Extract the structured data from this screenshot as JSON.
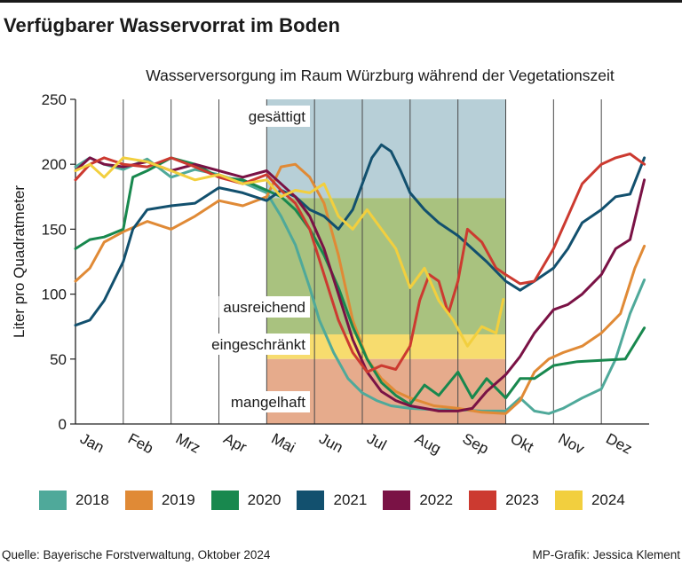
{
  "title": "Verfügbarer Wasservorrat im Boden",
  "footer": {
    "source": "Quelle: Bayerische Forstverwaltung, Oktober 2024",
    "credit": "MP-Grafik: Jessica Klement"
  },
  "chart_data": {
    "type": "line",
    "title": "Verfügbarer Wasservorrat im Boden",
    "subtitle": "Wasserversorgung im Raum Würzburg während der Vegetationszeit",
    "ylabel": "Liter pro Quadratmeter",
    "ylim": [
      0,
      250
    ],
    "yticks": [
      0,
      50,
      100,
      150,
      200,
      250
    ],
    "xlim": [
      0,
      12
    ],
    "months": [
      "Jan",
      "Feb",
      "Mrz",
      "Apr",
      "Mai",
      "Jun",
      "Jul",
      "Aug",
      "Sep",
      "Okt",
      "Nov",
      "Dez"
    ],
    "grid": "vertical at month starts",
    "legend_position": "bottom",
    "zones": [
      {
        "label": "gesättigt",
        "from": 174,
        "to": 250,
        "color": "#b7cfd7"
      },
      {
        "label": "ausreichend",
        "from": 69,
        "to": 174,
        "color": "#a9c27f"
      },
      {
        "label": "eingeschränkt",
        "from": 50,
        "to": 69,
        "color": "#f7dc6e"
      },
      {
        "label": "mangelhaft",
        "from": 0,
        "to": 50,
        "color": "#e6ab8c"
      }
    ],
    "zone_x_range": [
      4,
      9
    ],
    "series": [
      {
        "name": "2018",
        "color": "#4fa99a",
        "x": [
          0,
          0.3,
          0.6,
          1.0,
          1.5,
          2.0,
          2.5,
          3.0,
          3.5,
          4.0,
          4.3,
          4.6,
          4.9,
          5.1,
          5.4,
          5.7,
          6.0,
          6.3,
          6.6,
          7.0,
          7.5,
          8.0,
          8.5,
          9.0,
          9.3,
          9.6,
          9.9,
          10.2,
          10.6,
          11.0,
          11.3,
          11.6,
          11.9
        ],
        "y": [
          198,
          205,
          200,
          196,
          204,
          190,
          196,
          192,
          186,
          178,
          160,
          138,
          105,
          80,
          55,
          35,
          24,
          18,
          14,
          12,
          11,
          11,
          10,
          10,
          20,
          10,
          8,
          12,
          20,
          27,
          50,
          85,
          111
        ]
      },
      {
        "name": "2019",
        "color": "#e08a36",
        "x": [
          0,
          0.3,
          0.6,
          1.0,
          1.5,
          2.0,
          2.5,
          3.0,
          3.5,
          4.0,
          4.3,
          4.6,
          4.9,
          5.2,
          5.5,
          5.8,
          6.1,
          6.4,
          6.7,
          7.0,
          7.5,
          8.0,
          8.5,
          9.0,
          9.3,
          9.6,
          9.9,
          10.2,
          10.6,
          11.0,
          11.4,
          11.7,
          11.9
        ],
        "y": [
          110,
          120,
          140,
          148,
          156,
          150,
          160,
          172,
          168,
          175,
          198,
          200,
          190,
          170,
          130,
          80,
          50,
          35,
          25,
          20,
          14,
          12,
          9,
          8,
          18,
          40,
          50,
          55,
          60,
          70,
          85,
          120,
          137
        ]
      },
      {
        "name": "2020",
        "color": "#18884e",
        "x": [
          0,
          0.3,
          0.6,
          1.0,
          1.2,
          1.5,
          2.0,
          2.5,
          3.0,
          3.5,
          4.0,
          4.3,
          4.6,
          4.9,
          5.2,
          5.5,
          5.8,
          6.1,
          6.4,
          6.7,
          7.0,
          7.3,
          7.6,
          8.0,
          8.3,
          8.6,
          9.0,
          9.3,
          9.6,
          10.0,
          10.5,
          11.0,
          11.5,
          11.9
        ],
        "y": [
          135,
          142,
          144,
          150,
          190,
          195,
          205,
          200,
          190,
          188,
          180,
          175,
          165,
          150,
          130,
          105,
          75,
          50,
          32,
          22,
          15,
          30,
          22,
          40,
          20,
          35,
          20,
          35,
          35,
          45,
          48,
          49,
          50,
          74
        ]
      },
      {
        "name": "2021",
        "color": "#12506e",
        "x": [
          0,
          0.3,
          0.6,
          1.0,
          1.2,
          1.5,
          2.0,
          2.5,
          3.0,
          3.5,
          4.0,
          4.3,
          4.6,
          4.9,
          5.2,
          5.5,
          5.8,
          6.0,
          6.2,
          6.4,
          6.6,
          6.8,
          7.0,
          7.3,
          7.6,
          8.0,
          8.3,
          8.6,
          9.0,
          9.3,
          9.6,
          10.0,
          10.3,
          10.6,
          11.0,
          11.3,
          11.6,
          11.9
        ],
        "y": [
          76,
          80,
          95,
          125,
          150,
          165,
          168,
          170,
          182,
          178,
          172,
          180,
          175,
          165,
          160,
          150,
          165,
          185,
          205,
          215,
          210,
          195,
          178,
          165,
          155,
          145,
          135,
          125,
          110,
          103,
          110,
          120,
          135,
          155,
          165,
          175,
          177,
          205
        ]
      },
      {
        "name": "2022",
        "color": "#7a1245",
        "x": [
          0,
          0.3,
          0.6,
          1.0,
          1.5,
          2.0,
          2.5,
          3.0,
          3.5,
          4.0,
          4.3,
          4.6,
          4.9,
          5.2,
          5.5,
          5.8,
          6.1,
          6.4,
          6.7,
          7.0,
          7.3,
          7.6,
          8.0,
          8.3,
          8.6,
          9.0,
          9.3,
          9.6,
          10.0,
          10.3,
          10.6,
          11.0,
          11.3,
          11.6,
          11.9
        ],
        "y": [
          195,
          205,
          200,
          198,
          202,
          195,
          200,
          195,
          190,
          195,
          185,
          175,
          160,
          135,
          100,
          65,
          40,
          25,
          18,
          14,
          12,
          10,
          10,
          12,
          25,
          38,
          52,
          70,
          88,
          92,
          100,
          115,
          135,
          142,
          188
        ]
      },
      {
        "name": "2023",
        "color": "#cc3a30",
        "x": [
          0,
          0.3,
          0.6,
          1.0,
          1.5,
          2.0,
          2.5,
          3.0,
          3.5,
          4.0,
          4.3,
          4.6,
          4.9,
          5.2,
          5.5,
          5.8,
          6.1,
          6.4,
          6.7,
          7.0,
          7.2,
          7.4,
          7.6,
          7.8,
          8.0,
          8.2,
          8.5,
          8.8,
          9.0,
          9.3,
          9.6,
          10.0,
          10.3,
          10.6,
          11.0,
          11.3,
          11.6,
          11.9
        ],
        "y": [
          188,
          200,
          205,
          200,
          198,
          205,
          198,
          190,
          185,
          192,
          180,
          170,
          150,
          115,
          80,
          55,
          40,
          45,
          42,
          60,
          95,
          115,
          110,
          85,
          110,
          150,
          140,
          120,
          115,
          108,
          110,
          135,
          160,
          185,
          200,
          205,
          208,
          200
        ]
      },
      {
        "name": "2024",
        "color": "#f2cf3e",
        "x": [
          0,
          0.3,
          0.6,
          1.0,
          1.5,
          2.0,
          2.5,
          3.0,
          3.5,
          4.0,
          4.3,
          4.6,
          4.9,
          5.2,
          5.5,
          5.8,
          6.1,
          6.4,
          6.7,
          7.0,
          7.3,
          7.6,
          7.9,
          8.2,
          8.5,
          8.8,
          8.95
        ],
        "y": [
          195,
          200,
          190,
          205,
          202,
          195,
          188,
          192,
          185,
          188,
          175,
          180,
          178,
          185,
          160,
          150,
          165,
          150,
          135,
          105,
          120,
          95,
          80,
          60,
          75,
          70,
          96
        ]
      }
    ]
  }
}
